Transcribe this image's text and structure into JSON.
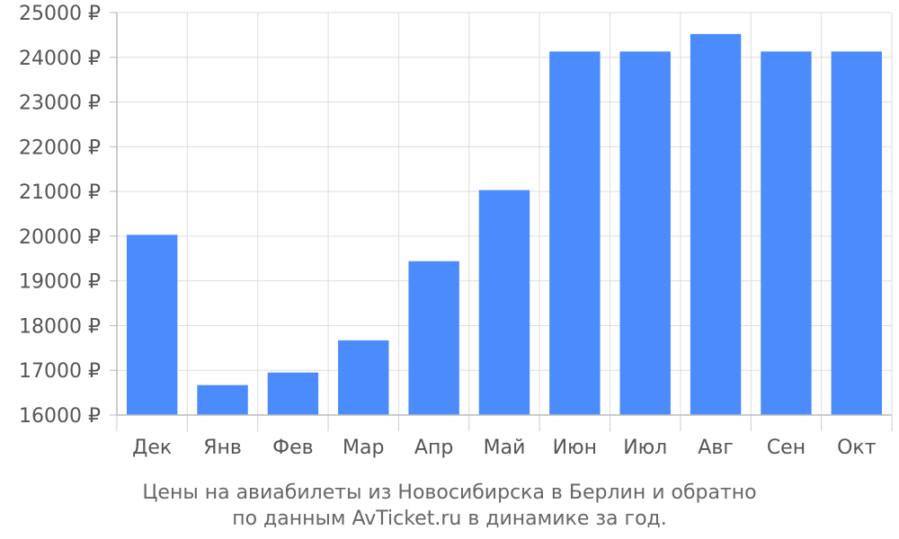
{
  "chart_data": {
    "type": "bar",
    "categories": [
      "Дек",
      "Янв",
      "Фев",
      "Мар",
      "Апр",
      "Май",
      "Июн",
      "Июл",
      "Авг",
      "Сен",
      "Окт"
    ],
    "values": [
      20030,
      16670,
      16950,
      17670,
      19440,
      21030,
      24130,
      24130,
      24520,
      24130,
      24130
    ],
    "ylim": [
      16000,
      25000
    ],
    "ytick_step": 1000,
    "ytick_labels": [
      "16000 ₽",
      "17000 ₽",
      "18000 ₽",
      "19000 ₽",
      "20000 ₽",
      "21000 ₽",
      "22000 ₽",
      "23000 ₽",
      "24000 ₽",
      "25000 ₽"
    ],
    "grid": true,
    "legend": "none",
    "bar_color": "#4c8bfc",
    "grid_color": "#dddddd"
  },
  "caption": {
    "line1": "Цены на авиабилеты из Новосибирска в Берлин и обратно",
    "line2": "по данным AvTicket.ru в динамике за год."
  }
}
